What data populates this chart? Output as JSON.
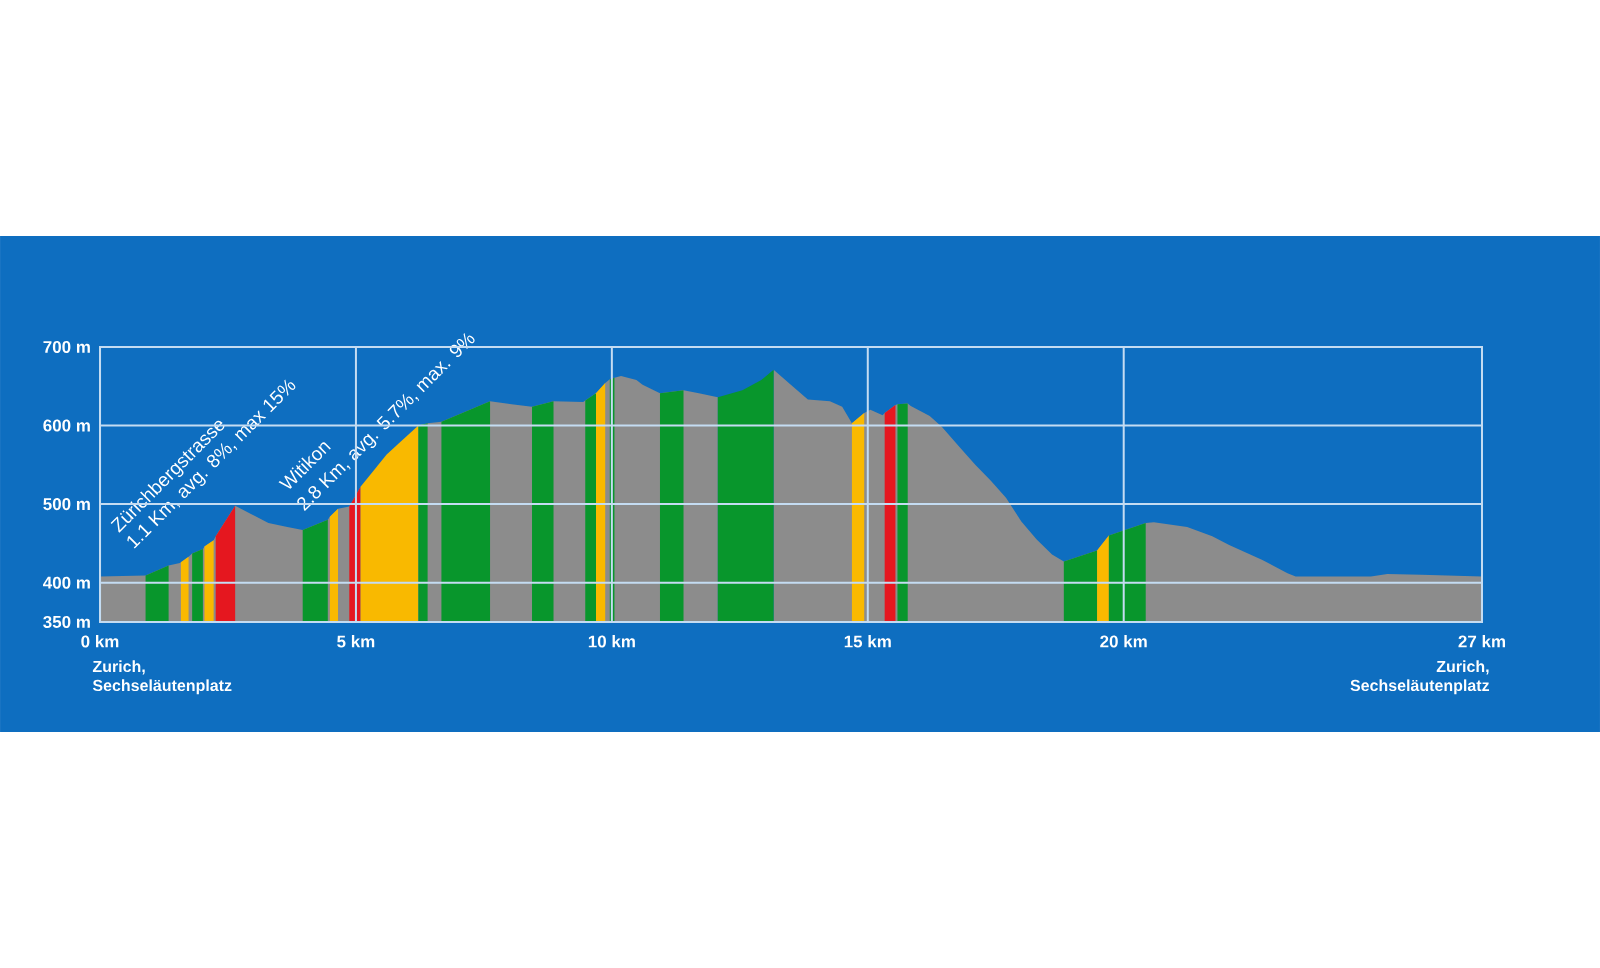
{
  "chart_data": {
    "type": "area",
    "xlim": [
      0,
      27
    ],
    "ylim": [
      350,
      700
    ],
    "xticks": [
      {
        "value": 0,
        "label": "0 km"
      },
      {
        "value": 5,
        "label": "5 km"
      },
      {
        "value": 10,
        "label": "10 km"
      },
      {
        "value": 15,
        "label": "15 km"
      },
      {
        "value": 20,
        "label": "20 km"
      },
      {
        "value": 27,
        "label": "27 km"
      }
    ],
    "yticks": [
      {
        "value": 350,
        "label": "350 m"
      },
      {
        "value": 400,
        "label": "400 m"
      },
      {
        "value": 500,
        "label": "500 m"
      },
      {
        "value": 600,
        "label": "600 m"
      },
      {
        "value": 700,
        "label": "700 m"
      }
    ],
    "grid": true,
    "series": [
      {
        "color": "#8c8c8c",
        "x": [
          0,
          0.89,
          1.34,
          1.56,
          1.58,
          1.73,
          1.8,
          2.01,
          2.04,
          2.22,
          2.26,
          2.64,
          2.93,
          3.29,
          3.66,
          3.96,
          4.45,
          4.49,
          4.65,
          4.87,
          5.09,
          5.6,
          5.85,
          6.22,
          6.4,
          6.67,
          7.62,
          8.04,
          8.44,
          8.86,
          9.44,
          9.48,
          9.69,
          9.87,
          9.96,
          10.05,
          10.18,
          10.48,
          10.6,
          10.94,
          11.4,
          11.7,
          12.07,
          12.55,
          12.92,
          13.16,
          13.53,
          13.83,
          14.26,
          14.5,
          14.69,
          14.93,
          15.05,
          15.29,
          15.33,
          15.54,
          15.58,
          15.78,
          15.84,
          16.21,
          16.45,
          16.8,
          17.1,
          17.4,
          17.7,
          18.0,
          18.3,
          18.6,
          18.83,
          19.48,
          19.71,
          20.43,
          20.59,
          21.24,
          21.73,
          22.06,
          22.71,
          23.2,
          23.36,
          24.83,
          25.15,
          25.81,
          27
        ],
        "values": [
          408,
          409,
          422,
          425,
          426,
          433,
          437,
          443,
          446,
          454,
          459,
          498,
          488,
          476,
          471,
          467,
          480,
          484,
          494,
          497,
          522,
          null,
          null,
          600,
          603,
          605,
          631,
          627,
          624,
          631,
          630,
          632,
          641,
          654,
          659,
          661,
          663,
          658,
          652,
          641,
          645,
          641,
          636,
          null,
          null,
          671,
          650,
          633,
          631,
          624,
          603,
          616,
          620,
          613,
          616,
          626,
          627,
          628,
          625,
          612,
          598,
          572,
          550,
          530,
          508,
          478,
          455,
          436,
          427,
          441,
          460,
          476,
          477,
          471,
          459,
          448,
          429,
          412,
          408,
          408,
          411,
          410,
          408
        ]
      },
      {
        "color": "#08962c",
        "x": [
          0.89,
          1.34
        ],
        "values": [
          409,
          422
        ]
      },
      {
        "color": "#f9b900",
        "x": [
          1.58,
          1.73
        ],
        "values": [
          426,
          433
        ]
      },
      {
        "color": "#08962c",
        "x": [
          1.8,
          2.01
        ],
        "values": [
          437,
          443
        ]
      },
      {
        "color": "#f9b900",
        "x": [
          2.04,
          2.22
        ],
        "values": [
          446,
          454
        ]
      },
      {
        "color": "#e5171f",
        "x": [
          2.26,
          2.64
        ],
        "values": [
          459,
          498
        ]
      },
      {
        "color": "#08962c",
        "x": [
          3.96,
          4.45
        ],
        "values": [
          467,
          480
        ]
      },
      {
        "color": "#f9b900",
        "x": [
          4.49,
          4.65
        ],
        "values": [
          484,
          494
        ]
      },
      {
        "color": "#e5171f",
        "x": [
          4.87,
          5.09
        ],
        "values": [
          497,
          522
        ]
      },
      {
        "color": "#f9b900",
        "x": [
          5.09,
          5.6,
          5.85,
          6.22
        ],
        "values": [
          522,
          563,
          578,
          600
        ]
      },
      {
        "color": "#08962c",
        "x": [
          6.22,
          6.4
        ],
        "values": [
          600,
          603
        ]
      },
      {
        "color": "#08962c",
        "x": [
          6.67,
          7.62
        ],
        "values": [
          605,
          631
        ]
      },
      {
        "color": "#08962c",
        "x": [
          8.44,
          8.86
        ],
        "values": [
          624,
          631
        ]
      },
      {
        "color": "#08962c",
        "x": [
          9.48,
          9.69
        ],
        "values": [
          632,
          641
        ]
      },
      {
        "color": "#f9b900",
        "x": [
          9.69,
          9.87
        ],
        "values": [
          641,
          654
        ]
      },
      {
        "color": "#08962c",
        "x": [
          9.96,
          10.05
        ],
        "values": [
          659,
          661
        ]
      },
      {
        "color": "#08962c",
        "x": [
          10.94,
          11.4
        ],
        "values": [
          641,
          645
        ]
      },
      {
        "color": "#08962c",
        "x": [
          12.07,
          12.55,
          12.92,
          13.16
        ],
        "values": [
          636,
          645,
          658,
          671
        ]
      },
      {
        "color": "#f9b900",
        "x": [
          14.69,
          14.93
        ],
        "values": [
          603,
          616
        ]
      },
      {
        "color": "#e5171f",
        "x": [
          15.33,
          15.54
        ],
        "values": [
          616,
          626
        ]
      },
      {
        "color": "#08962c",
        "x": [
          15.58,
          15.78
        ],
        "values": [
          627,
          628
        ]
      },
      {
        "color": "#08962c",
        "x": [
          18.83,
          19.48
        ],
        "values": [
          427,
          441
        ]
      },
      {
        "color": "#f9b900",
        "x": [
          19.48,
          19.71
        ],
        "values": [
          441,
          460
        ]
      },
      {
        "color": "#08962c",
        "x": [
          19.71,
          20.43
        ],
        "values": [
          460,
          476
        ]
      }
    ],
    "annotations": [
      "Zürichbergstrasse",
      "1.1 Km, avg. 8%, max 15%",
      "Witikon",
      "2.8 Km, avg. 5.7%, max. 9%",
      "Zurich, Sechseläutenplatz",
      "Zurich, Sechseläutenplatz"
    ]
  }
}
